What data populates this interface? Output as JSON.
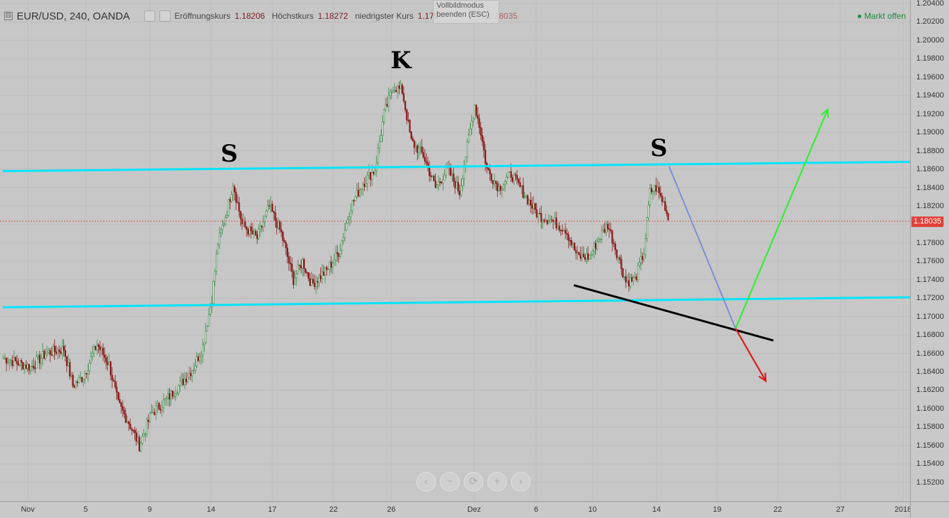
{
  "header": {
    "symbol": "EUR/USD, 240, OANDA",
    "collapse_glyph": "⊟",
    "open_label": "Eröffnungskurs",
    "open_value": "1.18206",
    "high_label": "Höchstkurs",
    "high_value": "1.18272",
    "low_label": "niedrigster Kurs",
    "low_value": "1.179",
    "close_value": "1.18035",
    "market_status": "Markt offen"
  },
  "tooltip": {
    "line1": "Vollbildmodus",
    "line2": "beenden (ESC)"
  },
  "current_price": "1.18035",
  "annotations": {
    "left_shoulder": "S",
    "head": "K",
    "right_shoulder": "S"
  },
  "nav_buttons": [
    "‹",
    "−",
    "⟳",
    "+",
    "›"
  ],
  "colors": {
    "background": "#c7c7c7",
    "up_candle": "#3f8a4a",
    "down_candle": "#8b1a1a",
    "neckline": "#00e5ff",
    "projection_line": "#7b8fd4",
    "bull_arrow": "#33ee33",
    "bear_arrow": "#dd1a1a",
    "price_label": "#e0413a"
  },
  "chart_data": {
    "type": "candlestick",
    "symbol": "EUR/USD",
    "timeframe": "240",
    "ylim": [
      1.1505,
      1.2042
    ],
    "price_ticks": [
      "1.15200",
      "1.15400",
      "1.15600",
      "1.15800",
      "1.16000",
      "1.16200",
      "1.16400",
      "1.16600",
      "1.16800",
      "1.17000",
      "1.17200",
      "1.17400",
      "1.17600",
      "1.17800",
      "1.18000",
      "1.18200",
      "1.18400",
      "1.18600",
      "1.18800",
      "1.19000",
      "1.19200",
      "1.19400",
      "1.19600",
      "1.19800",
      "1.20000",
      "1.20200",
      "1.20400"
    ],
    "time_ticks": [
      "Nov",
      "5",
      "9",
      "14",
      "17",
      "22",
      "26",
      "Dez",
      "6",
      "10",
      "14",
      "19",
      "22",
      "27",
      "2018"
    ],
    "waypoints": [
      [
        0,
        1.1655
      ],
      [
        18,
        1.1645
      ],
      [
        28,
        1.166
      ],
      [
        40,
        1.1665
      ],
      [
        46,
        1.1625
      ],
      [
        53,
        1.1635
      ],
      [
        62,
        1.167
      ],
      [
        70,
        1.1648
      ],
      [
        76,
        1.1605
      ],
      [
        83,
        1.1585
      ],
      [
        90,
        1.156
      ],
      [
        98,
        1.1595
      ],
      [
        108,
        1.161
      ],
      [
        118,
        1.1628
      ],
      [
        126,
        1.1645
      ],
      [
        132,
        1.1668
      ],
      [
        138,
        1.172
      ],
      [
        142,
        1.178
      ],
      [
        148,
        1.1815
      ],
      [
        152,
        1.1845
      ],
      [
        158,
        1.18
      ],
      [
        168,
        1.1785
      ],
      [
        176,
        1.182
      ],
      [
        184,
        1.179
      ],
      [
        192,
        1.174
      ],
      [
        198,
        1.176
      ],
      [
        204,
        1.1735
      ],
      [
        214,
        1.175
      ],
      [
        222,
        1.177
      ],
      [
        230,
        1.182
      ],
      [
        238,
        1.1845
      ],
      [
        246,
        1.186
      ],
      [
        252,
        1.192
      ],
      [
        258,
        1.195
      ],
      [
        264,
        1.1945
      ],
      [
        270,
        1.189
      ],
      [
        278,
        1.1875
      ],
      [
        286,
        1.184
      ],
      [
        294,
        1.186
      ],
      [
        302,
        1.1835
      ],
      [
        306,
        1.1875
      ],
      [
        312,
        1.193
      ],
      [
        316,
        1.19
      ],
      [
        320,
        1.186
      ],
      [
        328,
        1.184
      ],
      [
        336,
        1.1855
      ],
      [
        346,
        1.183
      ],
      [
        354,
        1.181
      ],
      [
        362,
        1.1805
      ],
      [
        372,
        1.1795
      ],
      [
        380,
        1.1765
      ],
      [
        388,
        1.1765
      ],
      [
        394,
        1.1785
      ],
      [
        400,
        1.18
      ],
      [
        406,
        1.177
      ],
      [
        412,
        1.1738
      ],
      [
        418,
        1.174
      ],
      [
        424,
        1.177
      ],
      [
        428,
        1.1835
      ],
      [
        432,
        1.184
      ],
      [
        438,
        1.182
      ],
      [
        440,
        1.1805
      ]
    ],
    "trendlines": {
      "upper_neckline": [
        [
          0,
          1.1858
        ],
        [
          603,
          1.1868
        ]
      ],
      "lower_neckline": [
        [
          0,
          1.171
        ],
        [
          603,
          1.1721
        ]
      ],
      "support_line": [
        [
          378,
          1.1734
        ],
        [
          510,
          1.1674
        ]
      ]
    },
    "projections": {
      "decline": [
        [
          441,
          1.1863
        ],
        [
          485,
          1.1687
        ]
      ],
      "bullish_target": [
        [
          485,
          1.1687
        ],
        [
          546,
          1.1925
        ]
      ],
      "bearish_target": [
        [
          485,
          1.1687
        ],
        [
          505,
          1.163
        ]
      ]
    }
  }
}
